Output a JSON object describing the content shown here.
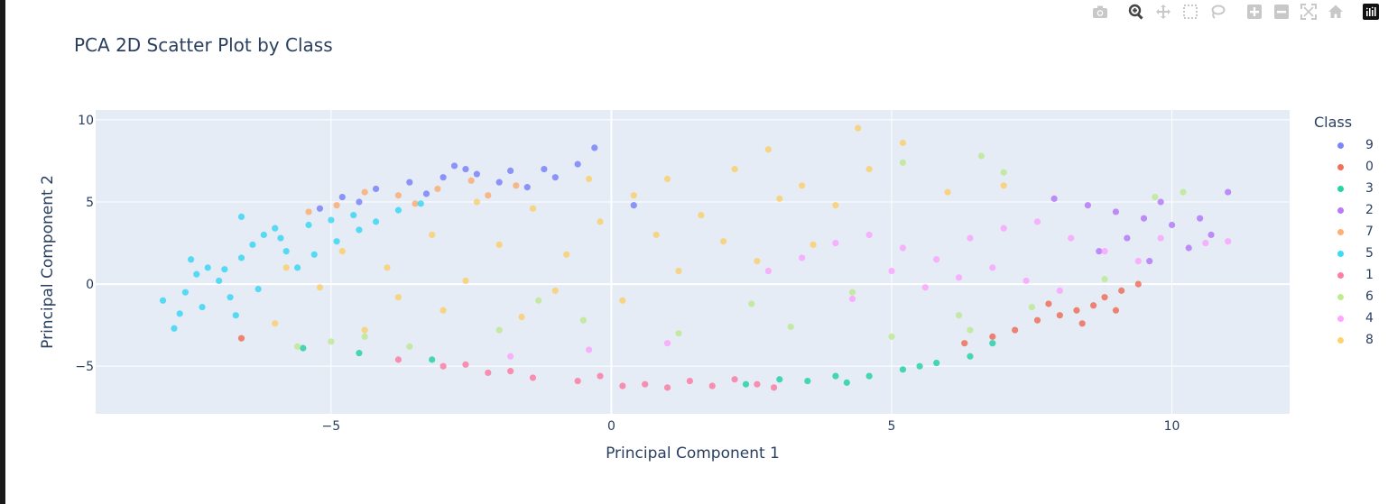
{
  "modebar": {
    "buttons": [
      {
        "name": "camera-icon",
        "title": "Download plot as a png"
      },
      {
        "name": "zoom-icon",
        "title": "Zoom"
      },
      {
        "name": "pan-icon",
        "title": "Pan"
      },
      {
        "name": "box-select-icon",
        "title": "Box Select"
      },
      {
        "name": "lasso-select-icon",
        "title": "Lasso Select"
      },
      {
        "name": "zoom-in-icon",
        "title": "Zoom in"
      },
      {
        "name": "zoom-out-icon",
        "title": "Zoom out"
      },
      {
        "name": "autoscale-icon",
        "title": "Autoscale"
      },
      {
        "name": "reset-axes-icon",
        "title": "Reset axes"
      },
      {
        "name": "plotly-logo-icon",
        "title": "Produced with Plotly"
      }
    ]
  },
  "chart_data": {
    "type": "scatter",
    "title": "PCA 2D Scatter Plot by Class",
    "xlabel": "Principal Component 1",
    "ylabel": "Principal Component 2",
    "xlim": [
      -9.2,
      12.1
    ],
    "ylim": [
      -7.9,
      10.6
    ],
    "xticks": [
      -5,
      0,
      5,
      10
    ],
    "yticks": [
      -5,
      0,
      5,
      10
    ],
    "xtick_labels": [
      "−5",
      "0",
      "5",
      "10"
    ],
    "ytick_labels": [
      "−5",
      "0",
      "5",
      "10"
    ],
    "grid": true,
    "legend_title": "Class",
    "legend_position": "right",
    "background": "#e5ecf6",
    "series": [
      {
        "name": "9",
        "color": "#636efa",
        "points": [
          [
            -4.8,
            5.3
          ],
          [
            -4.2,
            5.8
          ],
          [
            -3.6,
            6.2
          ],
          [
            -3.0,
            6.5
          ],
          [
            -2.4,
            6.7
          ],
          [
            -1.8,
            6.9
          ],
          [
            -1.2,
            7.0
          ],
          [
            -0.6,
            7.3
          ],
          [
            -0.3,
            8.3
          ],
          [
            -2.8,
            7.2
          ],
          [
            -4.5,
            5.0
          ],
          [
            -3.3,
            5.5
          ],
          [
            -2.0,
            6.2
          ],
          [
            -1.0,
            6.5
          ],
          [
            -5.2,
            4.6
          ],
          [
            -2.6,
            7.0
          ],
          [
            0.4,
            4.8
          ],
          [
            -1.5,
            5.9
          ]
        ]
      },
      {
        "name": "0",
        "color": "#ef553b",
        "points": [
          [
            7.6,
            -2.2
          ],
          [
            8.0,
            -1.9
          ],
          [
            8.3,
            -1.6
          ],
          [
            8.6,
            -1.3
          ],
          [
            7.2,
            -2.8
          ],
          [
            6.8,
            -3.2
          ],
          [
            8.8,
            -0.8
          ],
          [
            9.1,
            -0.4
          ],
          [
            9.4,
            0.0
          ],
          [
            8.4,
            -2.4
          ],
          [
            7.8,
            -1.2
          ],
          [
            -6.6,
            -3.3
          ],
          [
            6.3,
            -3.6
          ],
          [
            9.0,
            -1.6
          ]
        ]
      },
      {
        "name": "3",
        "color": "#00cc96",
        "points": [
          [
            3.5,
            -5.9
          ],
          [
            4.0,
            -5.6
          ],
          [
            4.6,
            -5.6
          ],
          [
            5.2,
            -5.2
          ],
          [
            5.8,
            -4.8
          ],
          [
            6.4,
            -4.4
          ],
          [
            3.0,
            -5.8
          ],
          [
            2.4,
            -6.1
          ],
          [
            -3.2,
            -4.6
          ],
          [
            -4.5,
            -4.2
          ],
          [
            -5.5,
            -3.9
          ],
          [
            6.8,
            -3.6
          ],
          [
            4.2,
            -6.0
          ],
          [
            5.5,
            -5.0
          ]
        ]
      },
      {
        "name": "2",
        "color": "#ab63fa",
        "points": [
          [
            8.5,
            4.8
          ],
          [
            9.0,
            4.4
          ],
          [
            9.5,
            4.0
          ],
          [
            10.0,
            3.6
          ],
          [
            10.5,
            4.0
          ],
          [
            11.0,
            5.6
          ],
          [
            9.8,
            5.0
          ],
          [
            8.7,
            2.0
          ],
          [
            9.2,
            2.8
          ],
          [
            10.3,
            2.2
          ],
          [
            7.9,
            5.2
          ],
          [
            9.6,
            1.4
          ],
          [
            10.7,
            3.0
          ]
        ]
      },
      {
        "name": "7",
        "color": "#ffa15a",
        "points": [
          [
            -4.4,
            5.6
          ],
          [
            -3.8,
            5.4
          ],
          [
            -3.1,
            5.8
          ],
          [
            -2.5,
            6.3
          ],
          [
            -4.9,
            4.8
          ],
          [
            -3.5,
            4.9
          ],
          [
            -2.2,
            5.4
          ],
          [
            -5.4,
            4.4
          ],
          [
            -1.7,
            6.0
          ]
        ]
      },
      {
        "name": "5",
        "color": "#19d3f3",
        "points": [
          [
            -8.0,
            -1.0
          ],
          [
            -7.7,
            -1.8
          ],
          [
            -7.6,
            -0.5
          ],
          [
            -7.4,
            0.6
          ],
          [
            -7.2,
            1.0
          ],
          [
            -7.0,
            0.2
          ],
          [
            -6.8,
            -0.8
          ],
          [
            -6.6,
            1.6
          ],
          [
            -6.4,
            2.4
          ],
          [
            -6.2,
            3.0
          ],
          [
            -6.0,
            3.4
          ],
          [
            -5.8,
            2.0
          ],
          [
            -5.6,
            1.0
          ],
          [
            -5.4,
            3.6
          ],
          [
            -5.0,
            3.9
          ],
          [
            -4.6,
            4.2
          ],
          [
            -4.2,
            3.8
          ],
          [
            -3.8,
            4.5
          ],
          [
            -6.6,
            4.1
          ],
          [
            -7.8,
            -2.7
          ],
          [
            -7.3,
            -1.4
          ],
          [
            -6.9,
            0.9
          ],
          [
            -6.3,
            -0.3
          ],
          [
            -5.9,
            2.8
          ],
          [
            -5.3,
            1.8
          ],
          [
            -4.9,
            2.6
          ],
          [
            -4.5,
            3.3
          ],
          [
            -6.7,
            -1.9
          ],
          [
            -7.5,
            1.5
          ],
          [
            -3.4,
            4.9
          ]
        ]
      },
      {
        "name": "1",
        "color": "#ff6692",
        "points": [
          [
            -3.8,
            -4.6
          ],
          [
            -3.0,
            -5.0
          ],
          [
            -2.2,
            -5.4
          ],
          [
            -1.4,
            -5.7
          ],
          [
            -0.6,
            -5.9
          ],
          [
            0.2,
            -6.2
          ],
          [
            1.0,
            -6.3
          ],
          [
            1.8,
            -6.2
          ],
          [
            2.6,
            -6.1
          ],
          [
            -1.8,
            -5.3
          ],
          [
            -0.2,
            -5.6
          ],
          [
            1.4,
            -5.9
          ],
          [
            2.2,
            -5.8
          ],
          [
            -2.6,
            -4.9
          ],
          [
            0.6,
            -6.1
          ],
          [
            2.9,
            -6.3
          ]
        ]
      },
      {
        "name": "6",
        "color": "#b6e880",
        "points": [
          [
            -5.0,
            -3.5
          ],
          [
            -3.6,
            -3.8
          ],
          [
            -2.0,
            -2.8
          ],
          [
            -0.5,
            -2.2
          ],
          [
            1.2,
            -3.0
          ],
          [
            3.2,
            -2.6
          ],
          [
            5.0,
            -3.2
          ],
          [
            6.4,
            -2.8
          ],
          [
            7.5,
            -1.4
          ],
          [
            8.8,
            0.3
          ],
          [
            7.0,
            6.8
          ],
          [
            5.2,
            7.4
          ],
          [
            10.2,
            5.6
          ],
          [
            -4.4,
            -3.2
          ],
          [
            -1.3,
            -1.0
          ],
          [
            2.5,
            -1.2
          ],
          [
            4.3,
            -0.5
          ],
          [
            6.2,
            -1.9
          ],
          [
            9.7,
            5.3
          ],
          [
            6.6,
            7.8
          ],
          [
            -5.6,
            -3.8
          ]
        ]
      },
      {
        "name": "4",
        "color": "#ff97ff",
        "points": [
          [
            4.0,
            2.5
          ],
          [
            4.6,
            3.0
          ],
          [
            5.2,
            2.2
          ],
          [
            5.8,
            1.5
          ],
          [
            6.4,
            2.8
          ],
          [
            7.0,
            3.4
          ],
          [
            7.6,
            3.8
          ],
          [
            8.2,
            2.8
          ],
          [
            8.8,
            2.0
          ],
          [
            9.4,
            1.4
          ],
          [
            5.0,
            0.8
          ],
          [
            5.6,
            -0.2
          ],
          [
            6.2,
            0.4
          ],
          [
            6.8,
            1.0
          ],
          [
            7.4,
            0.2
          ],
          [
            8.0,
            -0.4
          ],
          [
            3.4,
            1.6
          ],
          [
            2.8,
            0.8
          ],
          [
            4.3,
            -0.9
          ],
          [
            9.8,
            2.8
          ],
          [
            10.6,
            2.5
          ],
          [
            11.0,
            2.6
          ],
          [
            -1.8,
            -4.4
          ],
          [
            -0.4,
            -4.0
          ],
          [
            1.0,
            -3.6
          ]
        ]
      },
      {
        "name": "8",
        "color": "#fecb52",
        "points": [
          [
            -4.8,
            2.0
          ],
          [
            -4.0,
            1.0
          ],
          [
            -3.2,
            3.0
          ],
          [
            -2.6,
            0.2
          ],
          [
            -2.0,
            2.4
          ],
          [
            -1.4,
            4.6
          ],
          [
            -0.8,
            1.8
          ],
          [
            -0.2,
            3.8
          ],
          [
            0.4,
            5.4
          ],
          [
            1.0,
            6.4
          ],
          [
            1.6,
            4.2
          ],
          [
            2.2,
            7.0
          ],
          [
            2.8,
            8.2
          ],
          [
            3.4,
            6.0
          ],
          [
            4.0,
            4.8
          ],
          [
            4.6,
            7.0
          ],
          [
            5.2,
            8.6
          ],
          [
            4.4,
            9.5
          ],
          [
            3.0,
            5.2
          ],
          [
            2.0,
            2.6
          ],
          [
            1.2,
            0.8
          ],
          [
            0.2,
            -1.0
          ],
          [
            -1.0,
            -0.4
          ],
          [
            -3.8,
            -0.8
          ],
          [
            -4.4,
            -2.8
          ],
          [
            -3.0,
            -1.6
          ],
          [
            -5.2,
            -0.2
          ],
          [
            -2.4,
            5.0
          ],
          [
            0.8,
            3.0
          ],
          [
            2.6,
            1.4
          ],
          [
            6.0,
            5.6
          ],
          [
            7.0,
            6.0
          ],
          [
            3.6,
            2.4
          ],
          [
            -0.4,
            6.4
          ],
          [
            -5.8,
            1.0
          ],
          [
            -1.6,
            -2.0
          ],
          [
            -6.0,
            -2.4
          ]
        ]
      }
    ]
  }
}
